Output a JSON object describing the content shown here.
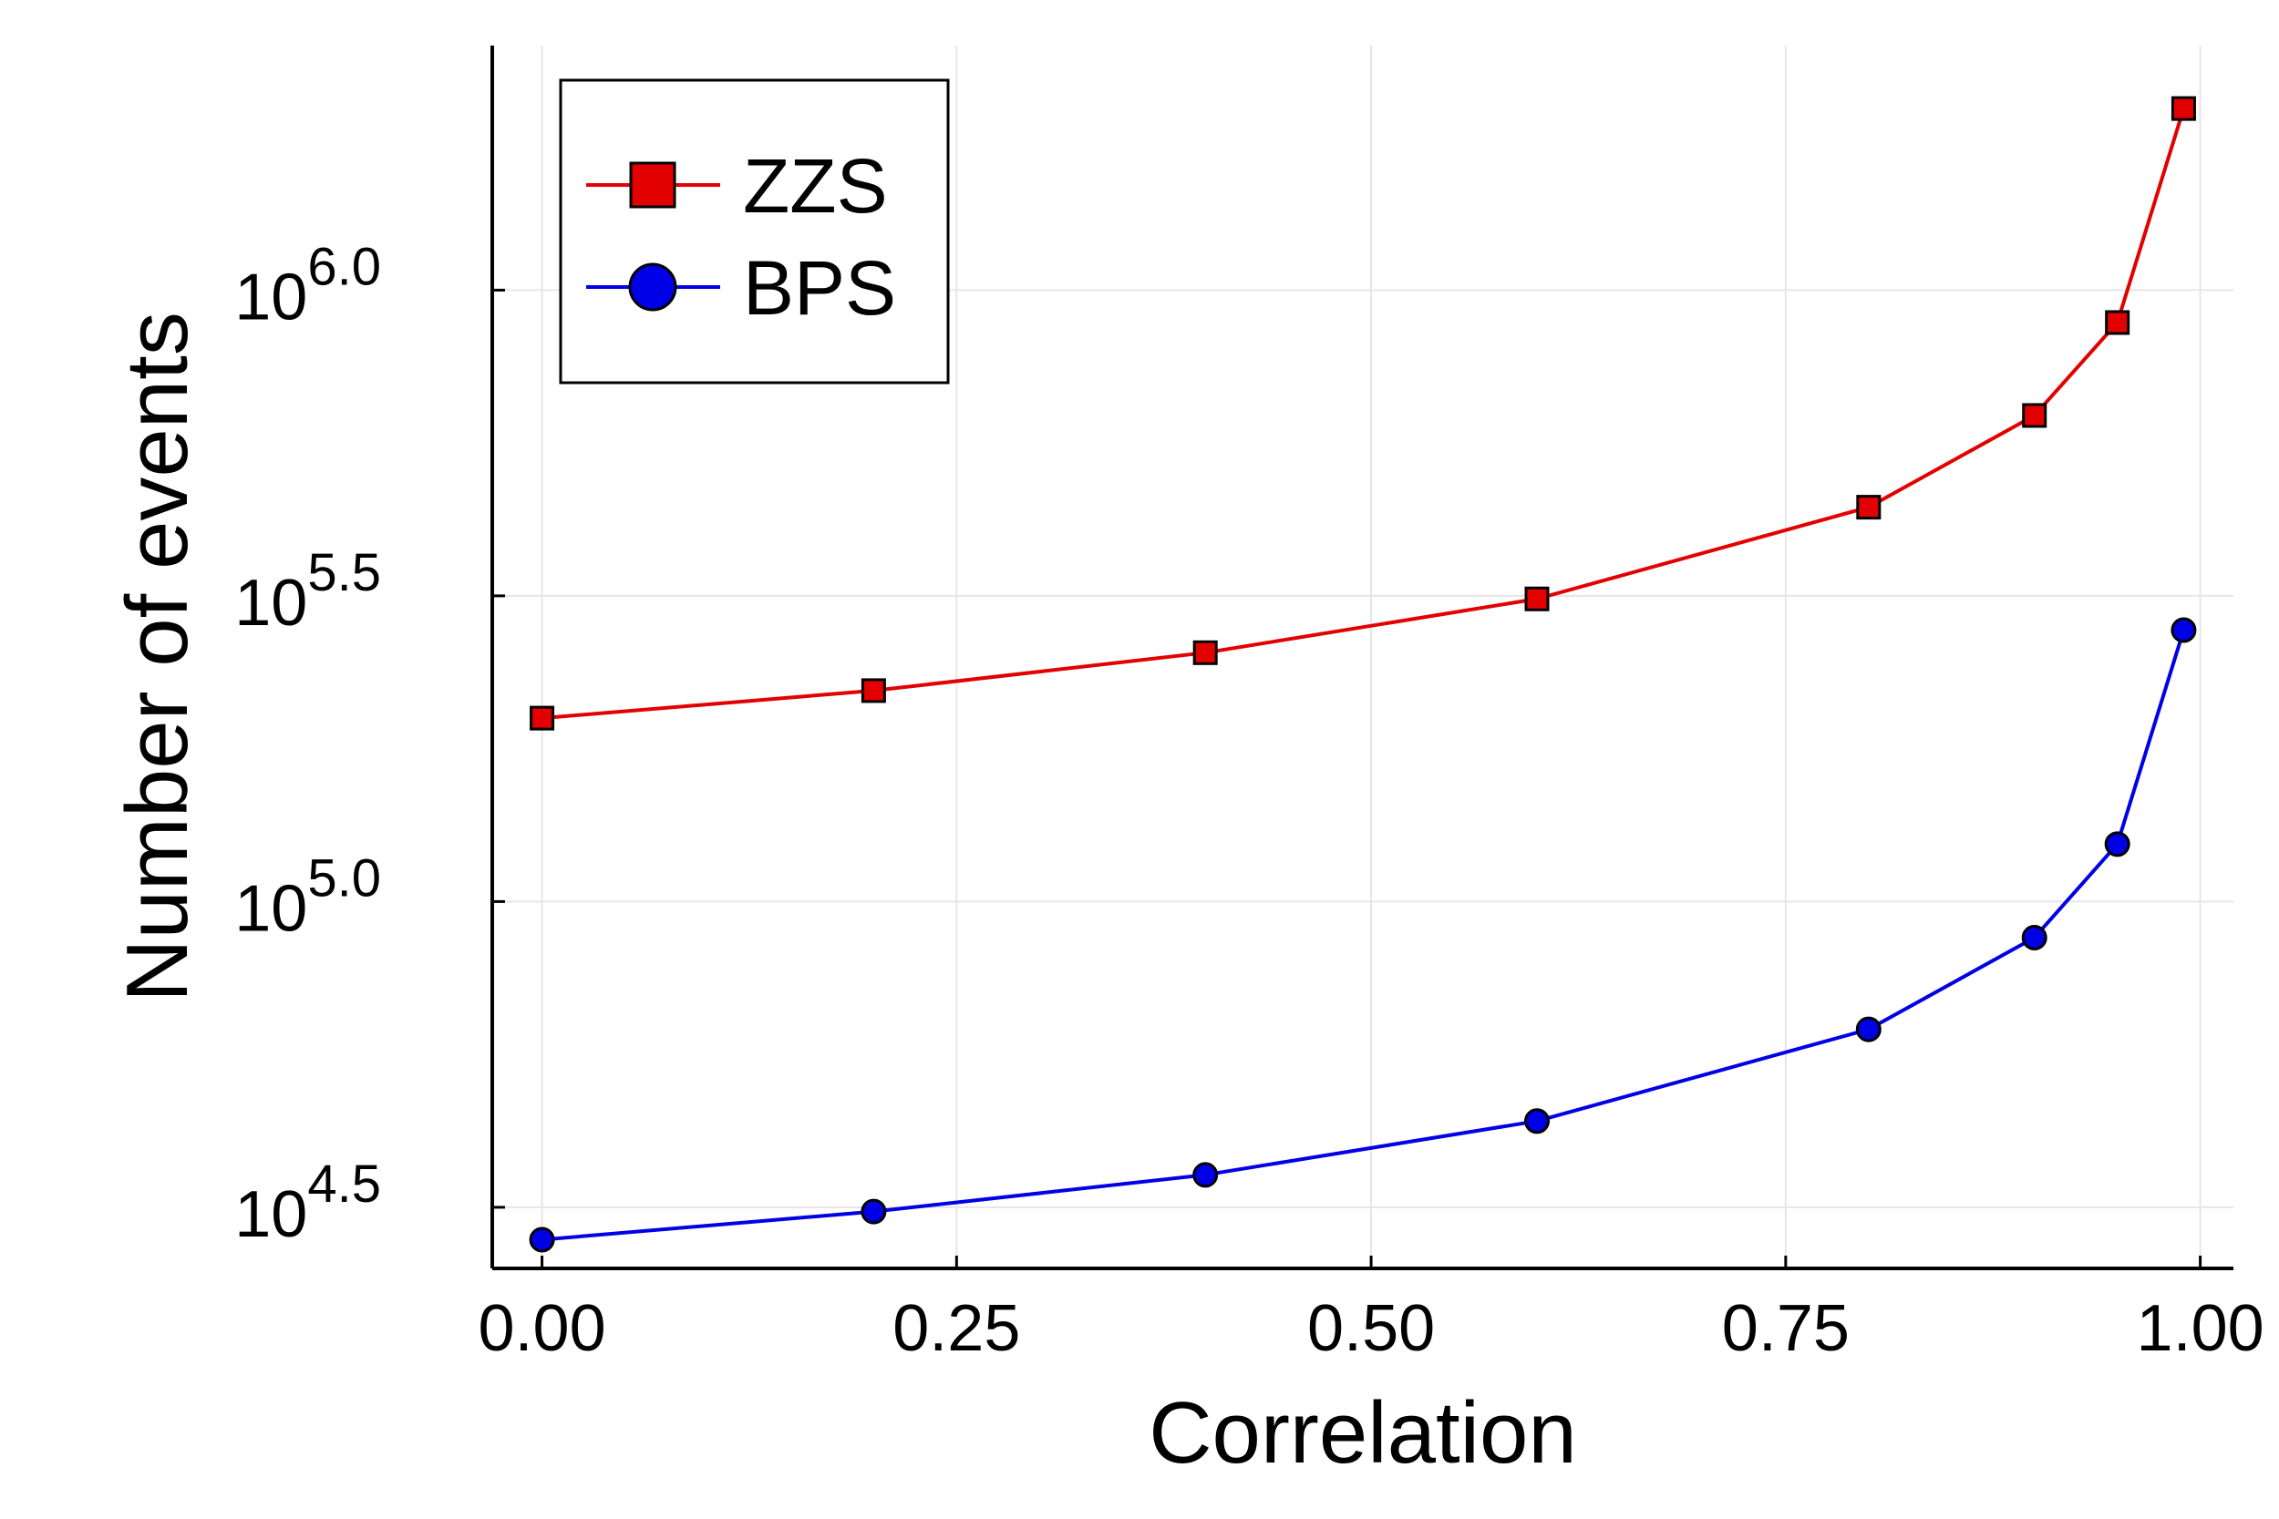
{
  "chart_data": {
    "type": "line",
    "title": "",
    "xlabel": "Correlation",
    "ylabel": "Number of events",
    "yscale": "log10",
    "xlim": [
      -0.03,
      1.02
    ],
    "ylim_log10": [
      4.4,
      6.4
    ],
    "x_ticks": [
      0.0,
      0.25,
      0.5,
      0.75,
      1.0
    ],
    "x_tick_labels": [
      "0.00",
      "0.25",
      "0.50",
      "0.75",
      "1.00"
    ],
    "y_ticks_log10": [
      4.5,
      5.0,
      5.5,
      6.0
    ],
    "y_tick_labels": [
      {
        "base": "10",
        "exponent": "4.5"
      },
      {
        "base": "10",
        "exponent": "5.0"
      },
      {
        "base": "10",
        "exponent": "5.5"
      },
      {
        "base": "10",
        "exponent": "6.0"
      }
    ],
    "grid": true,
    "legend_position": "top-left",
    "x": [
      0.0,
      0.2,
      0.4,
      0.6,
      0.8,
      0.9,
      0.95,
      0.99
    ],
    "series": [
      {
        "name": "ZZS",
        "color": "#e30000",
        "marker": "square",
        "values_log10": [
          5.3,
          5.345,
          5.407,
          5.495,
          5.645,
          5.795,
          5.947,
          6.297
        ]
      },
      {
        "name": "BPS",
        "color": "#0000e6",
        "marker": "circle",
        "values_log10": [
          4.447,
          4.493,
          4.553,
          4.641,
          4.791,
          4.941,
          5.094,
          5.444
        ]
      }
    ]
  }
}
